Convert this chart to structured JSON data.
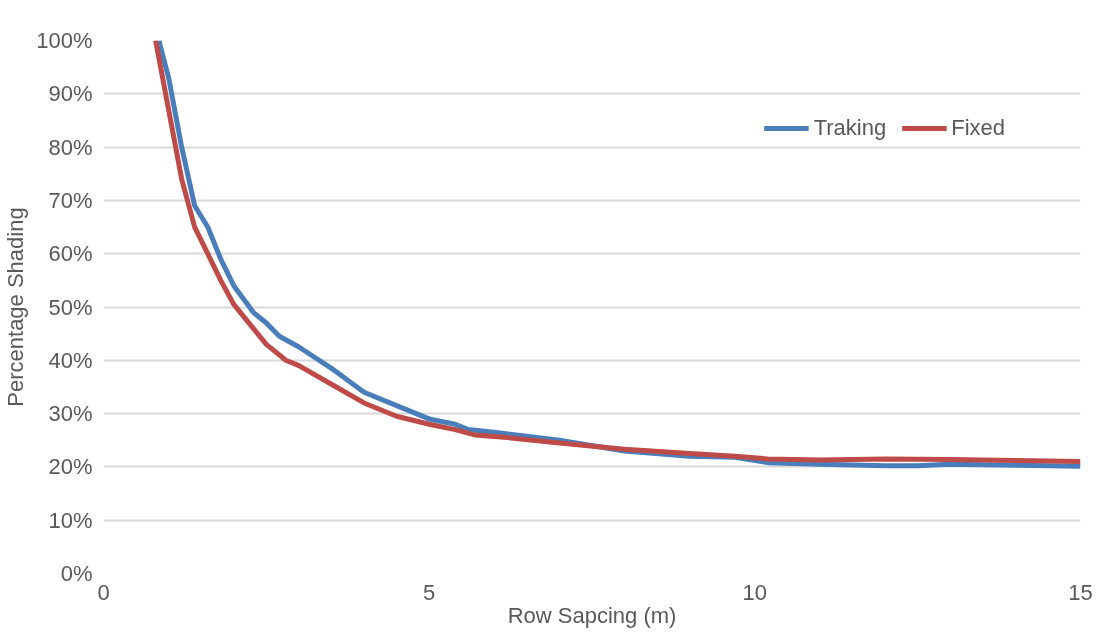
{
  "chart_data": {
    "type": "line",
    "xlabel": "Row Sapcing (m)",
    "ylabel": "Percentage Shading",
    "xlim": [
      0,
      15
    ],
    "xticks": [
      0,
      5,
      10,
      15
    ],
    "ylim": [
      0,
      100
    ],
    "yticks": [
      {
        "value": 0,
        "label": "0%"
      },
      {
        "value": 10,
        "label": "10%"
      },
      {
        "value": 20,
        "label": "20%"
      },
      {
        "value": 30,
        "label": "30%"
      },
      {
        "value": 40,
        "label": "40%"
      },
      {
        "value": 50,
        "label": "50%"
      },
      {
        "value": 60,
        "label": "60%"
      },
      {
        "value": 70,
        "label": "70%"
      },
      {
        "value": 80,
        "label": "80%"
      },
      {
        "value": 90,
        "label": "90%"
      },
      {
        "value": 100,
        "label": "100%"
      }
    ],
    "grid": "y",
    "legend": "top right",
    "marker": "none",
    "line_style": "solid",
    "series": [
      {
        "name": "Traking",
        "color": "#4a7ebb",
        "x": [
          0.85,
          1.0,
          1.2,
          1.4,
          1.6,
          1.8,
          2.0,
          2.3,
          2.5,
          2.7,
          3.0,
          3.5,
          4.0,
          4.5,
          5.0,
          5.4,
          5.6,
          6,
          7,
          8,
          9,
          9.7,
          10.2,
          11,
          12,
          12.5,
          13,
          14,
          15
        ],
        "values": [
          100,
          93,
          80,
          69,
          65,
          59,
          54,
          49,
          47,
          44.5,
          42.5,
          38.5,
          34,
          31.5,
          29,
          28,
          27,
          26.5,
          25,
          23,
          22,
          21.8,
          20.8,
          20.5,
          20.2,
          20.2,
          20.5,
          20.3,
          20.1
        ]
      },
      {
        "name": "Fixed",
        "color": "#be4b48",
        "x": [
          0.8,
          1.0,
          1.2,
          1.4,
          1.6,
          1.8,
          2.0,
          2.3,
          2.5,
          2.8,
          3.0,
          3.5,
          4.0,
          4.5,
          5.0,
          5.4,
          5.7,
          6.2,
          7,
          8,
          9,
          9.7,
          10.2,
          11,
          12,
          13,
          14,
          15
        ],
        "values": [
          100,
          87,
          74,
          65,
          60,
          55,
          50.5,
          46,
          43,
          40,
          39,
          35.5,
          32,
          29.5,
          28,
          27,
          26,
          25.5,
          24.5,
          23.3,
          22.5,
          22,
          21.5,
          21.3,
          21.5,
          21.4,
          21.2,
          21
        ]
      }
    ]
  }
}
